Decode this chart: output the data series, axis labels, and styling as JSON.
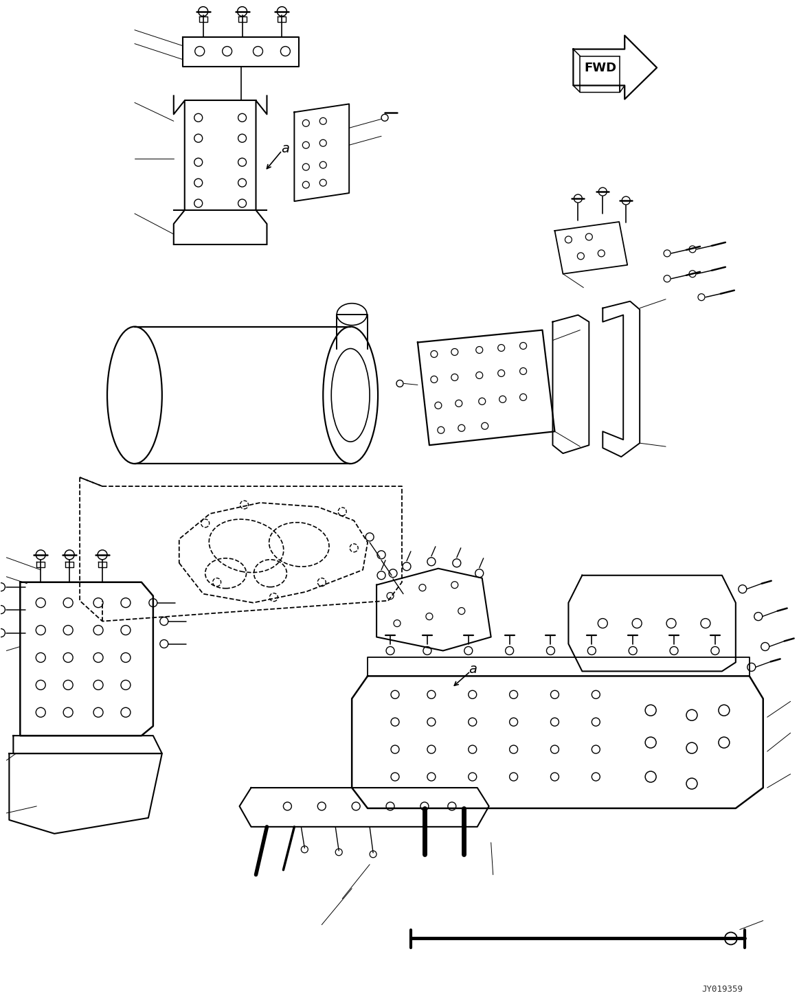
{
  "figsize": [
    11.63,
    14.59
  ],
  "dpi": 100,
  "bg_color": "#ffffff",
  "line_color": "#000000",
  "lw_main": 1.4,
  "lw_thin": 0.7,
  "lw_bold": 2.0,
  "watermark": "JY019359",
  "fwd_label": "FWD",
  "label_a": "a"
}
